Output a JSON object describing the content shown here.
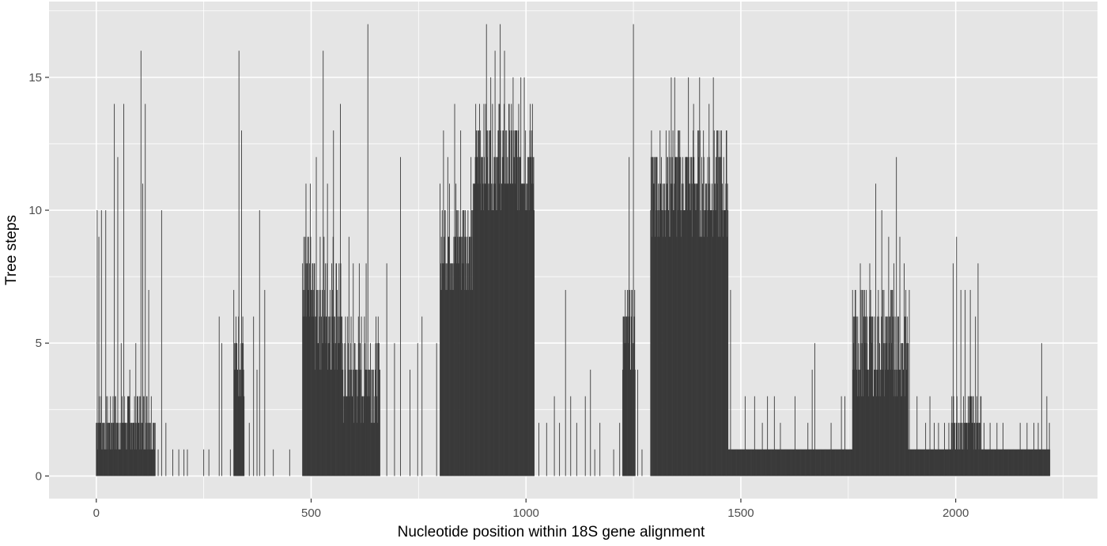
{
  "colors": {
    "panel_bg": "#e5e5e5",
    "grid_major": "#ffffff",
    "bar": "#3a3a3a",
    "axis_text": "#4d4d4d",
    "title_text": "#000000"
  },
  "chart_data": {
    "type": "bar",
    "title": "",
    "xlabel": "Nucleotide position within 18S gene alignment",
    "ylabel": "Tree steps",
    "xlim": [
      -110,
      2330
    ],
    "ylim": [
      -0.85,
      17.85
    ],
    "xticks": [
      0,
      500,
      1000,
      1500,
      2000
    ],
    "yticks": [
      0,
      5,
      10,
      15
    ],
    "grid": true,
    "legend": "none",
    "n_positions": 2220,
    "point_values": [
      [
        2,
        10
      ],
      [
        6,
        9
      ],
      [
        12,
        10
      ],
      [
        22,
        10
      ],
      [
        42,
        14
      ],
      [
        50,
        12
      ],
      [
        58,
        5
      ],
      [
        64,
        14
      ],
      [
        78,
        4
      ],
      [
        92,
        5
      ],
      [
        104,
        16
      ],
      [
        108,
        11
      ],
      [
        114,
        14
      ],
      [
        122,
        7
      ],
      [
        144,
        1
      ],
      [
        152,
        10
      ],
      [
        162,
        2
      ],
      [
        178,
        1
      ],
      [
        192,
        1
      ],
      [
        204,
        1
      ],
      [
        212,
        1
      ],
      [
        250,
        1
      ],
      [
        262,
        1
      ],
      [
        286,
        6
      ],
      [
        292,
        5
      ],
      [
        312,
        1
      ],
      [
        320,
        7
      ],
      [
        332,
        16
      ],
      [
        338,
        13
      ],
      [
        356,
        2
      ],
      [
        366,
        6
      ],
      [
        374,
        4
      ],
      [
        380,
        10
      ],
      [
        392,
        7
      ],
      [
        412,
        1
      ],
      [
        450,
        1
      ],
      [
        488,
        11
      ],
      [
        498,
        11
      ],
      [
        512,
        12
      ],
      [
        528,
        16
      ],
      [
        538,
        11
      ],
      [
        552,
        13
      ],
      [
        568,
        14
      ],
      [
        588,
        9
      ],
      [
        598,
        8
      ],
      [
        612,
        8
      ],
      [
        628,
        8
      ],
      [
        632,
        17
      ],
      [
        660,
        4
      ],
      [
        676,
        8
      ],
      [
        694,
        5
      ],
      [
        708,
        12
      ],
      [
        730,
        4
      ],
      [
        748,
        5
      ],
      [
        758,
        6
      ],
      [
        792,
        5
      ],
      [
        808,
        13
      ],
      [
        818,
        12
      ],
      [
        834,
        14
      ],
      [
        848,
        13
      ],
      [
        872,
        12
      ],
      [
        892,
        14
      ],
      [
        898,
        12
      ],
      [
        908,
        17
      ],
      [
        918,
        15
      ],
      [
        928,
        16
      ],
      [
        940,
        17
      ],
      [
        950,
        16
      ],
      [
        962,
        13
      ],
      [
        970,
        15
      ],
      [
        988,
        15
      ],
      [
        996,
        15
      ],
      [
        1012,
        10
      ],
      [
        1018,
        10
      ],
      [
        1030,
        2
      ],
      [
        1048,
        2
      ],
      [
        1066,
        3
      ],
      [
        1078,
        2
      ],
      [
        1092,
        7
      ],
      [
        1104,
        3
      ],
      [
        1118,
        2
      ],
      [
        1138,
        3
      ],
      [
        1150,
        4
      ],
      [
        1160,
        1
      ],
      [
        1172,
        2
      ],
      [
        1204,
        1
      ],
      [
        1218,
        2
      ],
      [
        1240,
        12
      ],
      [
        1250,
        17
      ],
      [
        1260,
        4
      ],
      [
        1270,
        1
      ],
      [
        1292,
        13
      ],
      [
        1302,
        12
      ],
      [
        1318,
        11
      ],
      [
        1328,
        9
      ],
      [
        1338,
        15
      ],
      [
        1346,
        15
      ],
      [
        1354,
        13
      ],
      [
        1364,
        9
      ],
      [
        1378,
        15
      ],
      [
        1390,
        14
      ],
      [
        1404,
        15
      ],
      [
        1414,
        9
      ],
      [
        1426,
        14
      ],
      [
        1436,
        15
      ],
      [
        1456,
        10
      ],
      [
        1470,
        10
      ],
      [
        1476,
        7
      ],
      [
        1510,
        3
      ],
      [
        1532,
        3
      ],
      [
        1550,
        2
      ],
      [
        1562,
        3
      ],
      [
        1578,
        3
      ],
      [
        1592,
        2
      ],
      [
        1626,
        3
      ],
      [
        1656,
        2
      ],
      [
        1666,
        4
      ],
      [
        1672,
        5
      ],
      [
        1710,
        2
      ],
      [
        1734,
        3
      ],
      [
        1742,
        3
      ],
      [
        1762,
        6
      ],
      [
        1772,
        6
      ],
      [
        1778,
        8
      ],
      [
        1790,
        6
      ],
      [
        1800,
        8
      ],
      [
        1806,
        6
      ],
      [
        1814,
        11
      ],
      [
        1828,
        10
      ],
      [
        1844,
        9
      ],
      [
        1856,
        8
      ],
      [
        1862,
        12
      ],
      [
        1870,
        9
      ],
      [
        1880,
        8
      ],
      [
        1892,
        7
      ],
      [
        1910,
        3
      ],
      [
        1930,
        2
      ],
      [
        1940,
        3
      ],
      [
        1950,
        2
      ],
      [
        1960,
        2
      ],
      [
        1974,
        2
      ],
      [
        1984,
        2
      ],
      [
        1994,
        8
      ],
      [
        2002,
        9
      ],
      [
        2012,
        7
      ],
      [
        2022,
        7
      ],
      [
        2034,
        7
      ],
      [
        2046,
        6
      ],
      [
        2052,
        8
      ],
      [
        2066,
        2
      ],
      [
        2080,
        2
      ],
      [
        2096,
        2
      ],
      [
        2110,
        2
      ],
      [
        2136,
        1
      ],
      [
        2150,
        2
      ],
      [
        2166,
        2
      ],
      [
        2182,
        2
      ],
      [
        2192,
        2
      ],
      [
        2200,
        5
      ],
      [
        2212,
        3
      ],
      [
        2218,
        2
      ]
    ],
    "dense_blocks": [
      {
        "start": 0,
        "end": 138,
        "base": 1,
        "jitter": 2
      },
      {
        "start": 320,
        "end": 345,
        "base": 3,
        "jitter": 3
      },
      {
        "start": 480,
        "end": 570,
        "base": 4,
        "jitter": 5
      },
      {
        "start": 570,
        "end": 660,
        "base": 2,
        "jitter": 4
      },
      {
        "start": 800,
        "end": 880,
        "base": 7,
        "jitter": 4
      },
      {
        "start": 880,
        "end": 1020,
        "base": 10,
        "jitter": 4
      },
      {
        "start": 1225,
        "end": 1255,
        "base": 4,
        "jitter": 3
      },
      {
        "start": 1290,
        "end": 1470,
        "base": 9,
        "jitter": 4
      },
      {
        "start": 1470,
        "end": 2220,
        "base": 1,
        "jitter": 0
      },
      {
        "start": 1760,
        "end": 1890,
        "base": 3,
        "jitter": 4
      },
      {
        "start": 1990,
        "end": 2060,
        "base": 1,
        "jitter": 2
      }
    ]
  }
}
